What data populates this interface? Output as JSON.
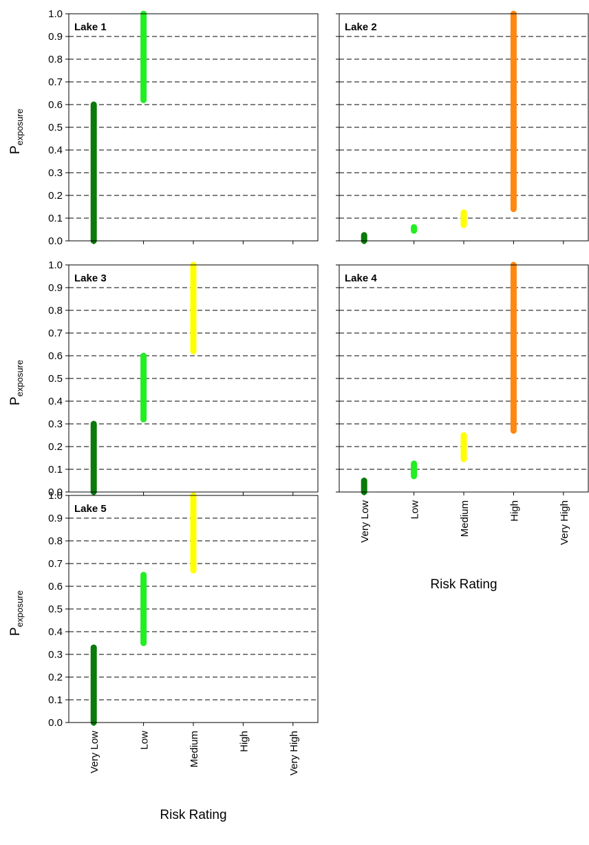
{
  "colors": {
    "Very Low": "#0a7a0a",
    "Low": "#22ee22",
    "Medium": "#ffff00",
    "High": "#ff8810"
  },
  "chart_data": [
    {
      "type": "range-bar",
      "title": "Lake 1",
      "categories": [
        "Very Low",
        "Low",
        "Medium",
        "High",
        "Very High"
      ],
      "ylabel": "P",
      "ylabel_sub": "exposure",
      "ylim": [
        0,
        1
      ],
      "yticks": [
        "0.0",
        "0.1",
        "0.2",
        "0.3",
        "0.4",
        "0.5",
        "0.6",
        "0.7",
        "0.8",
        "0.9",
        "1.0"
      ],
      "grid": "dashed horizontal",
      "ranges": [
        {
          "category": "Very Low",
          "low": 0.0,
          "high": 0.6
        },
        {
          "category": "Low",
          "low": 0.62,
          "high": 1.0
        }
      ]
    },
    {
      "type": "range-bar",
      "title": "Lake 2",
      "categories": [
        "Very Low",
        "Low",
        "Medium",
        "High",
        "Very High"
      ],
      "ylim": [
        0,
        1
      ],
      "grid": "dashed horizontal",
      "ranges": [
        {
          "category": "Very Low",
          "low": 0.0,
          "high": 0.025
        },
        {
          "category": "Low",
          "low": 0.045,
          "high": 0.06
        },
        {
          "category": "Medium",
          "low": 0.07,
          "high": 0.125
        },
        {
          "category": "High",
          "low": 0.14,
          "high": 1.0
        }
      ]
    },
    {
      "type": "range-bar",
      "title": "Lake 3",
      "categories": [
        "Very Low",
        "Low",
        "Medium",
        "High",
        "Very High"
      ],
      "ylabel": "P",
      "ylabel_sub": "exposure",
      "ylim": [
        0,
        1
      ],
      "yticks": [
        "0.0",
        "0.1",
        "0.2",
        "0.3",
        "0.4",
        "0.5",
        "0.6",
        "0.7",
        "0.8",
        "0.9",
        "1.0"
      ],
      "grid": "dashed horizontal",
      "ranges": [
        {
          "category": "Very Low",
          "low": 0.0,
          "high": 0.3
        },
        {
          "category": "Low",
          "low": 0.32,
          "high": 0.6
        },
        {
          "category": "Medium",
          "low": 0.62,
          "high": 1.0
        }
      ]
    },
    {
      "type": "range-bar",
      "title": "Lake 4",
      "categories": [
        "Very Low",
        "Low",
        "Medium",
        "High",
        "Very High"
      ],
      "xlabel": "Risk Rating",
      "ylim": [
        0,
        1
      ],
      "grid": "dashed horizontal",
      "ranges": [
        {
          "category": "Very Low",
          "low": 0.0,
          "high": 0.05
        },
        {
          "category": "Low",
          "low": 0.07,
          "high": 0.125
        },
        {
          "category": "Medium",
          "low": 0.145,
          "high": 0.25
        },
        {
          "category": "High",
          "low": 0.27,
          "high": 1.0
        }
      ]
    },
    {
      "type": "range-bar",
      "title": "Lake 5",
      "categories": [
        "Very Low",
        "Low",
        "Medium",
        "High",
        "Very High"
      ],
      "xlabel": "Risk Rating",
      "ylabel": "P",
      "ylabel_sub": "exposure",
      "ylim": [
        0,
        1
      ],
      "yticks": [
        "0.0",
        "0.1",
        "0.2",
        "0.3",
        "0.4",
        "0.5",
        "0.6",
        "0.7",
        "0.8",
        "0.9",
        "1.0"
      ],
      "grid": "dashed horizontal",
      "ranges": [
        {
          "category": "Very Low",
          "low": 0.0,
          "high": 0.33
        },
        {
          "category": "Low",
          "low": 0.35,
          "high": 0.65
        },
        {
          "category": "Medium",
          "low": 0.67,
          "high": 1.0
        }
      ]
    }
  ]
}
